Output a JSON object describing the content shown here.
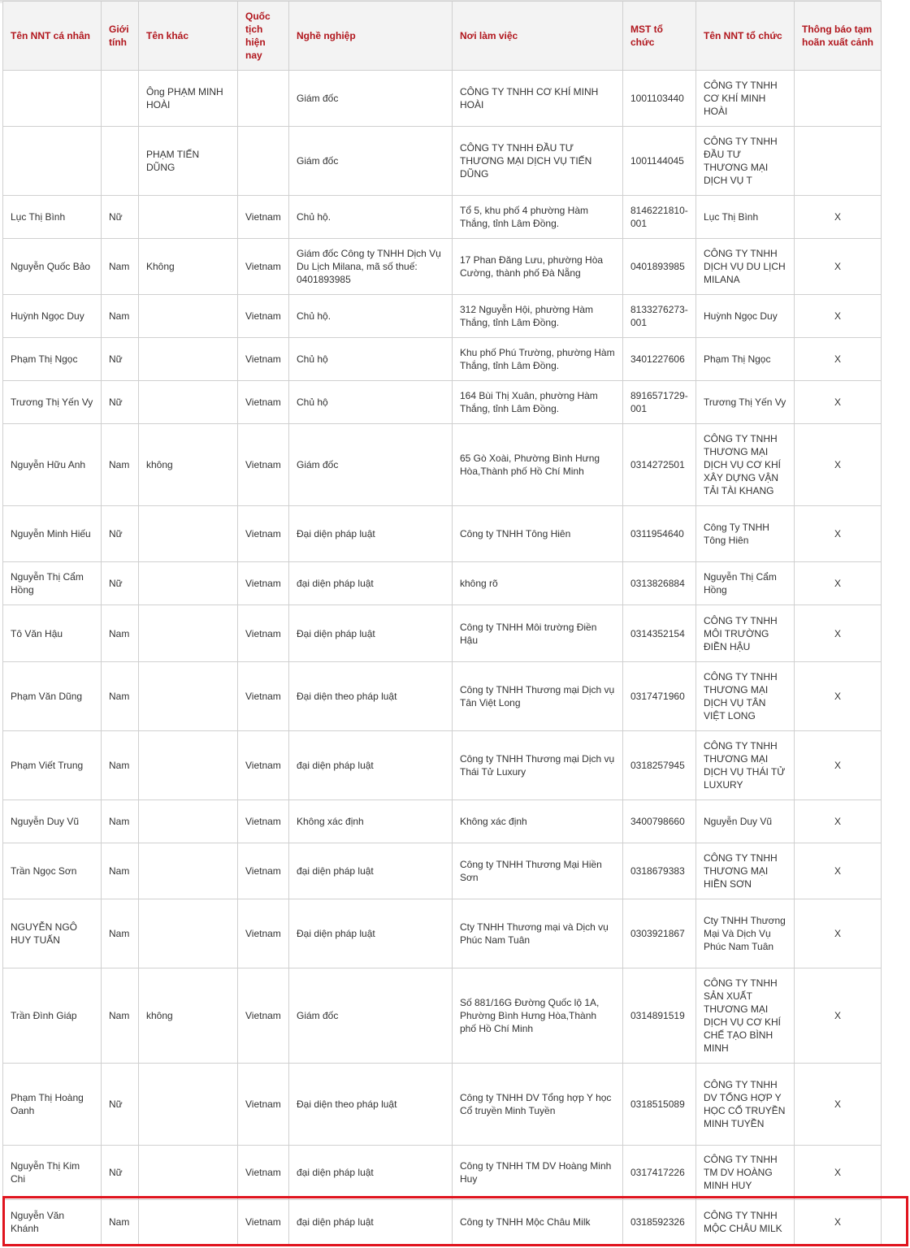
{
  "table": {
    "headers": [
      "Tên NNT cá nhân",
      "Giới tính",
      "Tên khác",
      "Quốc tịch hiện nay",
      "Nghề nghiệp",
      "Nơi làm việc",
      "MST tổ chức",
      "Tên NNT tổ chức",
      "Thông báo tạm hoãn xuất cảnh"
    ],
    "rows": [
      [
        "",
        "",
        "Ông PHẠM MINH HOÀI",
        "",
        "Giám đốc",
        "CÔNG TY TNHH CƠ KHÍ MINH HOÀI",
        "1001103440",
        "CÔNG TY TNHH CƠ KHÍ MINH HOÀI",
        ""
      ],
      [
        "",
        "",
        "PHẠM TIẾN DŨNG",
        "",
        "Giám đốc",
        "CÔNG TY TNHH ĐẦU TƯ THƯƠNG MẠI DỊCH VỤ TIẾN DŨNG",
        "1001144045",
        "CÔNG TY TNHH ĐẦU TƯ THƯƠNG MẠI DỊCH VỤ T",
        ""
      ],
      [
        "Lục Thị Bình",
        "Nữ",
        "",
        "Vietnam",
        "Chủ hộ.",
        "Tổ 5, khu phố 4 phường Hàm Thắng, tỉnh Lâm Đồng.",
        "8146221810-001",
        "Lục Thị Bình",
        "X"
      ],
      [
        "Nguyễn Quốc Bảo",
        "Nam",
        "Không",
        "Vietnam",
        "Giám đốc Công ty TNHH Dịch Vụ Du Lịch Milana, mã số thuế: 0401893985",
        "17 Phan Đăng Lưu, phường Hòa Cường, thành phố Đà Nẵng",
        "0401893985",
        "CÔNG TY TNHH DỊCH VỤ DU LỊCH MILANA",
        "X"
      ],
      [
        "Huỳnh Ngọc Duy",
        "Nam",
        "",
        "Vietnam",
        "Chủ hộ.",
        "312 Nguyễn Hội, phường Hàm Thắng, tỉnh Lâm Đồng.",
        "8133276273-001",
        "Huỳnh Ngọc Duy",
        "X"
      ],
      [
        "Phạm Thị Ngọc",
        "Nữ",
        "",
        "Vietnam",
        "Chủ hộ",
        "Khu phố Phú Trường, phường Hàm Thắng, tỉnh Lâm Đồng.",
        "3401227606",
        "Phạm Thị Ngọc",
        "X"
      ],
      [
        "Trương Thị Yến Vy",
        "Nữ",
        "",
        "Vietnam",
        "Chủ hộ",
        "164 Bùi Thị Xuân, phường Hàm Thắng, tỉnh Lâm Đồng.",
        "8916571729-001",
        "Trương Thị Yến Vy",
        "X"
      ],
      [
        "Nguyễn Hữu Anh",
        "Nam",
        "không",
        "Vietnam",
        "Giám đốc",
        "65 Gò Xoài, Phường Bình Hưng Hòa,Thành phố Hồ Chí Minh",
        "0314272501",
        "CÔNG TY TNHH THƯƠNG MẠI DỊCH VỤ CƠ KHÍ XÂY DỰNG VẬN TẢI TÀI KHANG",
        "X"
      ],
      [
        "Nguyễn Minh Hiếu",
        "Nữ",
        "",
        "Vietnam",
        "Đại diện pháp luật",
        "Công ty TNHH Tông Hiên",
        "0311954640",
        "Công Ty TNHH Tông Hiên",
        "X"
      ],
      [
        "Nguyễn Thị Cẩm Hồng",
        "Nữ",
        "",
        "Vietnam",
        "đại diện pháp luật",
        "không rõ",
        "0313826884",
        "Nguyễn Thị Cẩm Hồng",
        "X"
      ],
      [
        "Tô Văn Hậu",
        "Nam",
        "",
        "Vietnam",
        "Đại diện pháp luật",
        "Công ty TNHH Môi trường Điền Hậu",
        "0314352154",
        "CÔNG TY TNHH MÔI TRƯỜNG ĐIỀN HẬU",
        "X"
      ],
      [
        "Phạm Văn Dũng",
        "Nam",
        "",
        "Vietnam",
        "Đại diện theo pháp luật",
        "Công ty TNHH Thương mại Dịch vụ Tân Việt Long",
        "0317471960",
        "CÔNG TY TNHH THƯƠNG MẠI DỊCH VỤ TÂN VIỆT LONG",
        "X"
      ],
      [
        "Phạm Viết Trung",
        "Nam",
        "",
        "Vietnam",
        "đại diện pháp luật",
        "Công ty TNHH Thương mại Dịch vụ Thái Tử Luxury",
        "0318257945",
        "CÔNG TY TNHH THƯƠNG MẠI DỊCH VỤ THÁI TỬ LUXURY",
        "X"
      ],
      [
        "Nguyễn Duy Vũ",
        "Nam",
        "",
        "Vietnam",
        "Không xác định",
        "Không xác định",
        "3400798660",
        "Nguyễn Duy Vũ",
        "X"
      ],
      [
        "Trần Ngọc Sơn",
        "Nam",
        "",
        "Vietnam",
        "đại diện pháp luật",
        "Công ty TNHH Thương Mại Hiền Sơn",
        "0318679383",
        "CÔNG TY TNHH THƯƠNG MẠI HIỀN SƠN",
        "X"
      ],
      [
        "NGUYỄN NGÔ HUY TUẤN",
        "Nam",
        "",
        "Vietnam",
        "Đại diện pháp luật",
        "Cty TNHH Thương mại và Dịch vụ Phúc Nam Tuân",
        "0303921867",
        "Cty TNHH Thương Mại Và Dịch Vụ Phúc Nam Tuân",
        "X"
      ],
      [
        "Trần Đình Giáp",
        "Nam",
        "không",
        "Vietnam",
        "Giám đốc",
        "Số 881/16G Đường Quốc lộ 1A, Phường Bình Hưng Hòa,Thành phố Hồ Chí Minh",
        "0314891519",
        "CÔNG TY TNHH SẢN XUẤT THƯƠNG MẠI DỊCH VỤ CƠ KHÍ CHẾ TẠO BÌNH MINH",
        "X"
      ],
      [
        "Phạm Thị Hoàng Oanh",
        "Nữ",
        "",
        "Vietnam",
        "Đại diện theo pháp luật",
        "Công ty TNHH DV Tổng hợp Y học Cổ truyền Minh Tuyền",
        "0318515089",
        "CÔNG TY TNHH DV TỔNG HỢP Y HỌC CỔ TRUYỀN MINH TUYỀN",
        "X"
      ],
      [
        "Nguyễn Thị Kim Chi",
        "Nữ",
        "",
        "Vietnam",
        "đại diện pháp luật",
        "Công ty TNHH TM DV Hoàng Minh Huy",
        "0317417226",
        "CÔNG TY TNHH TM DV HOÀNG MINH HUY",
        "X"
      ],
      [
        "Nguyễn Văn Khánh",
        "Nam",
        "",
        "Vietnam",
        "đại diện pháp luật",
        "Công ty TNHH Mộc Châu Milk",
        "0318592326",
        "CÔNG TY TNHH MỘC CHÂU MILK",
        "X"
      ]
    ],
    "highlighted_row": 19,
    "colors": {
      "header_text": "#b1161d",
      "highlight_border": "#e0141e"
    }
  }
}
